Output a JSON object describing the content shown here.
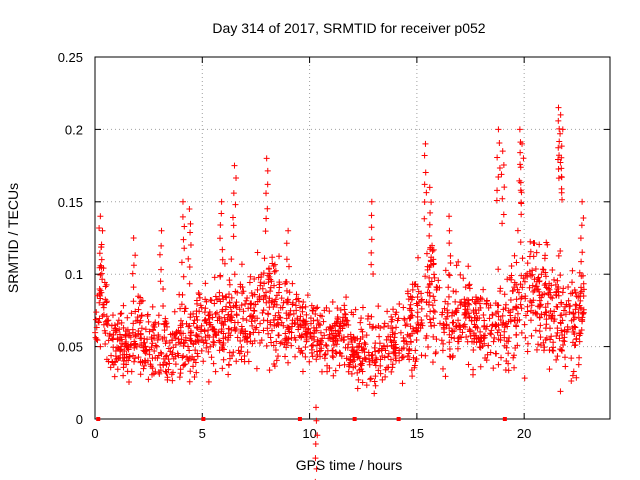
{
  "chart_data": {
    "type": "scatter",
    "title": "Day 314 of 2017, SRMTID for receiver p052",
    "xlabel": "GPS time / hours",
    "ylabel": "SRMTID / TECUs",
    "xlim": [
      0,
      24
    ],
    "ylim": [
      0,
      0.25
    ],
    "xticks": [
      0,
      5,
      10,
      15,
      20
    ],
    "xtick_labels": [
      "0",
      "5",
      "10",
      "15",
      "20"
    ],
    "yticks": [
      0,
      0.05,
      0.1,
      0.15,
      0.2,
      0.25
    ],
    "ytick_labels": [
      "0",
      "0.05",
      "0.1",
      "0.15",
      "0.2",
      "0.25"
    ],
    "grid": true,
    "marker": "+",
    "color": "#ff0000",
    "series": [
      {
        "name": "SRMTID",
        "envelope": {
          "hours": [
            0.0,
            0.3,
            0.6,
            1.0,
            1.5,
            2.0,
            2.5,
            3.0,
            3.5,
            4.0,
            4.5,
            5.0,
            5.5,
            6.0,
            6.5,
            7.0,
            7.5,
            8.0,
            8.5,
            9.0,
            9.5,
            10.0,
            10.5,
            11.0,
            11.5,
            12.0,
            12.5,
            13.0,
            13.5,
            14.0,
            14.5,
            15.0,
            15.5,
            16.0,
            16.5,
            17.0,
            17.5,
            18.0,
            18.5,
            19.0,
            19.5,
            20.0,
            20.5,
            21.0,
            21.5,
            22.0,
            22.5,
            22.8
          ],
          "typical": [
            0.055,
            0.09,
            0.06,
            0.05,
            0.05,
            0.06,
            0.055,
            0.05,
            0.05,
            0.055,
            0.055,
            0.06,
            0.065,
            0.07,
            0.07,
            0.065,
            0.075,
            0.08,
            0.075,
            0.07,
            0.065,
            0.06,
            0.055,
            0.055,
            0.06,
            0.05,
            0.045,
            0.045,
            0.05,
            0.055,
            0.06,
            0.07,
            0.08,
            0.075,
            0.065,
            0.07,
            0.07,
            0.065,
            0.06,
            0.06,
            0.075,
            0.085,
            0.085,
            0.08,
            0.075,
            0.065,
            0.065,
            0.075
          ],
          "spread": [
            0.02,
            0.04,
            0.03,
            0.025,
            0.025,
            0.03,
            0.03,
            0.03,
            0.025,
            0.03,
            0.03,
            0.03,
            0.035,
            0.04,
            0.04,
            0.035,
            0.04,
            0.045,
            0.04,
            0.035,
            0.03,
            0.03,
            0.03,
            0.03,
            0.03,
            0.03,
            0.03,
            0.03,
            0.03,
            0.03,
            0.035,
            0.04,
            0.05,
            0.045,
            0.035,
            0.035,
            0.035,
            0.035,
            0.035,
            0.04,
            0.05,
            0.05,
            0.045,
            0.045,
            0.05,
            0.05,
            0.04,
            0.04
          ],
          "n_points": 1800
        },
        "peaks": [
          {
            "x": 0.25,
            "y": 0.14
          },
          {
            "x": 0.35,
            "y": 0.13
          },
          {
            "x": 1.8,
            "y": 0.125
          },
          {
            "x": 3.1,
            "y": 0.13
          },
          {
            "x": 4.1,
            "y": 0.15
          },
          {
            "x": 4.4,
            "y": 0.145
          },
          {
            "x": 5.9,
            "y": 0.15
          },
          {
            "x": 6.5,
            "y": 0.175
          },
          {
            "x": 8.0,
            "y": 0.18
          },
          {
            "x": 9.0,
            "y": 0.13
          },
          {
            "x": 12.9,
            "y": 0.15
          },
          {
            "x": 15.4,
            "y": 0.19
          },
          {
            "x": 15.6,
            "y": 0.16
          },
          {
            "x": 16.5,
            "y": 0.14
          },
          {
            "x": 18.8,
            "y": 0.2
          },
          {
            "x": 19.0,
            "y": 0.185
          },
          {
            "x": 19.8,
            "y": 0.2
          },
          {
            "x": 19.9,
            "y": 0.19
          },
          {
            "x": 21.6,
            "y": 0.215
          },
          {
            "x": 21.7,
            "y": 0.21
          },
          {
            "x": 21.8,
            "y": 0.2
          },
          {
            "x": 22.7,
            "y": 0.15
          },
          {
            "x": 10.3,
            "y": 0.008
          }
        ]
      }
    ],
    "axis_markers": {
      "hours": [
        0.15,
        5.05,
        9.55,
        12.1,
        14.15,
        19.1
      ],
      "y": 0
    }
  }
}
